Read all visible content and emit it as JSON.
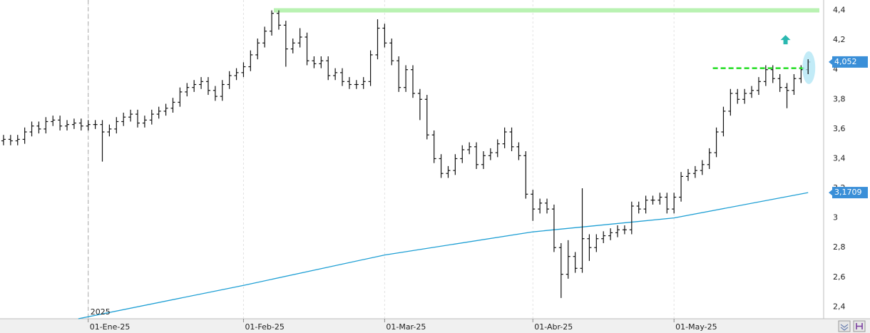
{
  "chart_data": {
    "type": "ohlc",
    "year_label": "2025",
    "xlim": [
      -0.5,
      116.2
    ],
    "ylim": [
      2.32,
      4.47
    ],
    "xticks": [
      {
        "value": 12,
        "label": "01-Ene-25"
      },
      {
        "value": 34,
        "label": "01-Feb-25"
      },
      {
        "value": 54,
        "label": "01-Mar-25"
      },
      {
        "value": 75,
        "label": "01-Abr-25"
      },
      {
        "value": 95,
        "label": "01-May-25"
      }
    ],
    "yticks": [
      {
        "value": 2.4,
        "label": "2,4"
      },
      {
        "value": 2.6,
        "label": "2,6"
      },
      {
        "value": 2.8,
        "label": "2,8"
      },
      3,
      {
        "value": 3.2,
        "label": "3,2"
      },
      {
        "value": 3.4,
        "label": "3,4"
      },
      {
        "value": 3.6,
        "label": "3,6"
      },
      {
        "value": 3.8,
        "label": "3,8"
      },
      4,
      {
        "value": 4.2,
        "label": "4,2"
      },
      {
        "value": 4.4,
        "label": "4,4"
      }
    ],
    "grid": true,
    "color": "#111111",
    "open": [
      3.52,
      3.53,
      3.52,
      3.53,
      3.58,
      3.62,
      3.6,
      3.65,
      3.66,
      3.62,
      3.63,
      3.64,
      3.62,
      3.63,
      3.63,
      3.58,
      3.6,
      3.65,
      3.68,
      3.7,
      3.64,
      3.66,
      3.7,
      3.72,
      3.74,
      3.78,
      3.85,
      3.88,
      3.9,
      3.92,
      3.86,
      3.82,
      3.9,
      3.96,
      3.98,
      4.02,
      4.1,
      4.18,
      4.26,
      4.38,
      4.3,
      4.14,
      4.18,
      4.22,
      4.06,
      4.04,
      4.06,
      3.96,
      3.98,
      3.92,
      3.9,
      3.9,
      3.92,
      4.1,
      4.28,
      4.18,
      4.06,
      3.88,
      4.0,
      3.84,
      3.8,
      3.56,
      3.4,
      3.3,
      3.32,
      3.4,
      3.46,
      3.48,
      3.36,
      3.42,
      3.44,
      3.5,
      3.58,
      3.48,
      3.42,
      3.16,
      3.06,
      3.1,
      3.06,
      2.8,
      2.62,
      2.74,
      2.66,
      2.86,
      2.8,
      2.86,
      2.88,
      2.9,
      2.92,
      2.92,
      3.08,
      3.06,
      3.12,
      3.12,
      3.14,
      3.06,
      3.14,
      3.28,
      3.3,
      3.32,
      3.36,
      3.44,
      3.58,
      3.72,
      3.84,
      3.8,
      3.84,
      3.86,
      3.92,
      4.0,
      3.94,
      3.88,
      3.86,
      3.94,
      4.0
    ],
    "high": [
      3.56,
      3.56,
      3.56,
      3.61,
      3.65,
      3.65,
      3.68,
      3.69,
      3.69,
      3.66,
      3.67,
      3.67,
      3.66,
      3.66,
      3.66,
      3.63,
      3.68,
      3.71,
      3.73,
      3.73,
      3.69,
      3.73,
      3.75,
      3.77,
      3.81,
      3.88,
      3.91,
      3.93,
      3.95,
      3.95,
      3.89,
      3.93,
      3.99,
      4.01,
      4.05,
      4.13,
      4.21,
      4.29,
      4.4,
      4.4,
      4.33,
      4.21,
      4.28,
      4.25,
      4.09,
      4.09,
      4.09,
      4.01,
      4.01,
      3.95,
      3.93,
      3.95,
      4.13,
      4.34,
      4.31,
      4.21,
      4.09,
      4.03,
      4.03,
      3.87,
      3.83,
      3.59,
      3.43,
      3.35,
      3.43,
      3.49,
      3.51,
      3.51,
      3.45,
      3.47,
      3.53,
      3.61,
      3.61,
      3.51,
      3.45,
      3.19,
      3.13,
      3.13,
      3.09,
      2.83,
      2.85,
      2.77,
      3.2,
      2.89,
      2.89,
      2.91,
      2.93,
      2.95,
      2.95,
      3.11,
      3.11,
      3.15,
      3.15,
      3.17,
      3.17,
      3.17,
      3.31,
      3.33,
      3.35,
      3.39,
      3.47,
      3.61,
      3.75,
      3.87,
      3.87,
      3.87,
      3.89,
      3.95,
      4.03,
      4.03,
      3.97,
      3.91,
      3.97,
      4.03,
      4.07
    ],
    "low": [
      3.49,
      3.49,
      3.49,
      3.5,
      3.55,
      3.57,
      3.57,
      3.62,
      3.59,
      3.59,
      3.6,
      3.59,
      3.59,
      3.6,
      3.38,
      3.55,
      3.57,
      3.62,
      3.65,
      3.61,
      3.61,
      3.63,
      3.67,
      3.69,
      3.71,
      3.75,
      3.82,
      3.85,
      3.87,
      3.83,
      3.79,
      3.79,
      3.87,
      3.93,
      3.95,
      3.99,
      4.07,
      4.15,
      4.23,
      4.27,
      4.02,
      4.11,
      4.15,
      4.03,
      4.01,
      4.01,
      3.93,
      3.93,
      3.89,
      3.87,
      3.87,
      3.87,
      3.89,
      4.07,
      4.15,
      4.03,
      3.85,
      3.85,
      3.81,
      3.66,
      3.53,
      3.37,
      3.27,
      3.27,
      3.29,
      3.37,
      3.43,
      3.33,
      3.33,
      3.39,
      3.41,
      3.47,
      3.45,
      3.39,
      3.13,
      2.98,
      3.03,
      3.03,
      2.77,
      2.46,
      2.59,
      2.63,
      2.63,
      2.71,
      2.77,
      2.83,
      2.85,
      2.87,
      2.89,
      2.89,
      3.03,
      3.03,
      3.09,
      3.09,
      3.03,
      3.03,
      3.11,
      3.25,
      3.27,
      3.29,
      3.33,
      3.41,
      3.55,
      3.69,
      3.77,
      3.77,
      3.81,
      3.83,
      3.89,
      3.91,
      3.85,
      3.74,
      3.83,
      3.91,
      3.97
    ],
    "close": [
      3.53,
      3.52,
      3.53,
      3.58,
      3.62,
      3.6,
      3.65,
      3.66,
      3.62,
      3.63,
      3.64,
      3.62,
      3.63,
      3.63,
      3.58,
      3.6,
      3.65,
      3.68,
      3.7,
      3.64,
      3.66,
      3.7,
      3.72,
      3.74,
      3.78,
      3.85,
      3.88,
      3.9,
      3.92,
      3.86,
      3.82,
      3.9,
      3.96,
      3.98,
      4.02,
      4.1,
      4.18,
      4.26,
      4.38,
      4.3,
      4.14,
      4.18,
      4.22,
      4.06,
      4.04,
      4.06,
      3.96,
      3.98,
      3.92,
      3.9,
      3.9,
      3.92,
      4.1,
      4.28,
      4.18,
      4.06,
      3.88,
      4.0,
      3.84,
      3.8,
      3.56,
      3.4,
      3.3,
      3.32,
      3.4,
      3.46,
      3.48,
      3.36,
      3.42,
      3.44,
      3.5,
      3.58,
      3.48,
      3.42,
      3.16,
      3.06,
      3.1,
      3.06,
      2.8,
      2.62,
      2.74,
      2.66,
      2.86,
      2.8,
      2.86,
      2.88,
      2.9,
      2.92,
      2.92,
      3.08,
      3.06,
      3.12,
      3.12,
      3.14,
      3.06,
      3.14,
      3.28,
      3.3,
      3.32,
      3.36,
      3.44,
      3.58,
      3.72,
      3.84,
      3.8,
      3.84,
      3.86,
      3.92,
      4.0,
      3.94,
      3.88,
      3.86,
      3.94,
      4.0,
      4.052
    ],
    "price_label": {
      "value": 4.052,
      "label": "4,052"
    },
    "moving_average": {
      "color": "#1e9fd4",
      "x": [
        10.6,
        34,
        54,
        75,
        95,
        114
      ],
      "values": [
        2.32,
        2.545,
        2.75,
        2.906,
        3.0,
        3.1709
      ],
      "price_label": {
        "value": 3.1709,
        "label": "3,1709"
      }
    },
    "resistance": {
      "value": 4.4,
      "color": "#a8f0a0"
    },
    "trigger": {
      "value": 4.01,
      "color": "#22dd22"
    },
    "signal_color": "#2ab8b0",
    "label_color": "#3a8fd8"
  }
}
